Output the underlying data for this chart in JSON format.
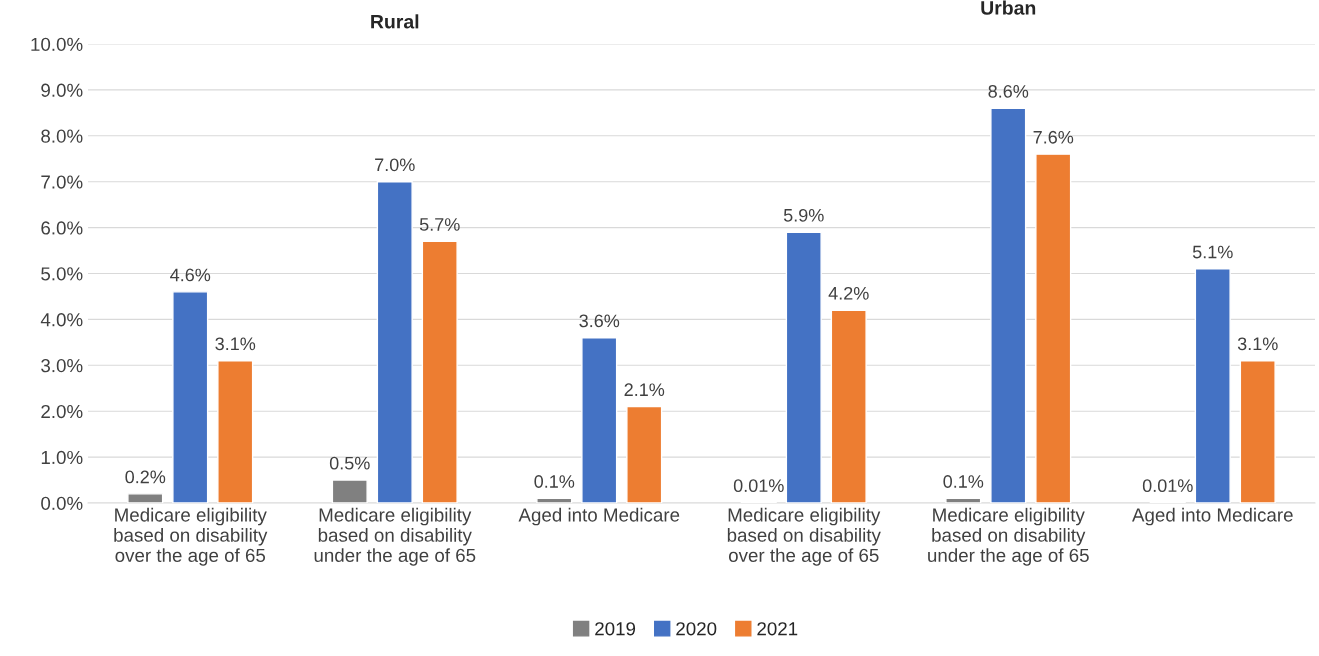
{
  "chart_data": {
    "type": "bar",
    "categories": [
      "Medicare eligibility\nbased on disability\nover the age of 65",
      "Medicare eligibility\nbased on disability\nunder the age of 65",
      "Aged into Medicare",
      "Medicare eligibility\nbased on disability\nover the age of 65",
      "Medicare eligibility\nbased on disability\nunder the age of 65",
      "Aged into Medicare"
    ],
    "series": [
      {
        "name": "2019",
        "color": "#808080",
        "values": [
          0.2,
          0.5,
          0.1,
          0.01,
          0.1,
          0.01
        ],
        "value_labels": [
          "0.2%",
          "0.5%",
          "0.1%",
          "0.01%",
          "0.1%",
          "0.01%"
        ]
      },
      {
        "name": "2020",
        "color": "#4472c4",
        "values": [
          4.6,
          7.0,
          3.6,
          5.9,
          8.6,
          5.1
        ],
        "value_labels": [
          "4.6%",
          "7.0%",
          "3.6%",
          "5.9%",
          "8.6%",
          "5.1%"
        ]
      },
      {
        "name": "2021",
        "color": "#ed7d31",
        "values": [
          3.1,
          5.7,
          2.1,
          4.2,
          7.6,
          3.1
        ],
        "value_labels": [
          "3.1%",
          "5.7%",
          "2.1%",
          "4.2%",
          "7.6%",
          "3.1%"
        ]
      }
    ],
    "annotations": [
      "Rural",
      "Urban"
    ],
    "ylim": [
      0,
      10
    ],
    "yticks": [
      {
        "value": 0,
        "label": "0.0%"
      },
      {
        "value": 1,
        "label": "1.0%"
      },
      {
        "value": 2,
        "label": "2.0%"
      },
      {
        "value": 3,
        "label": "3.0%"
      },
      {
        "value": 4,
        "label": "4.0%"
      },
      {
        "value": 5,
        "label": "5.0%"
      },
      {
        "value": 6,
        "label": "6.0%"
      },
      {
        "value": 7,
        "label": "7.0%"
      },
      {
        "value": 8,
        "label": "8.0%"
      },
      {
        "value": 9,
        "label": "9.0%"
      },
      {
        "value": 10,
        "label": "10.0%"
      }
    ],
    "grid": "y",
    "legend": "bottom"
  }
}
